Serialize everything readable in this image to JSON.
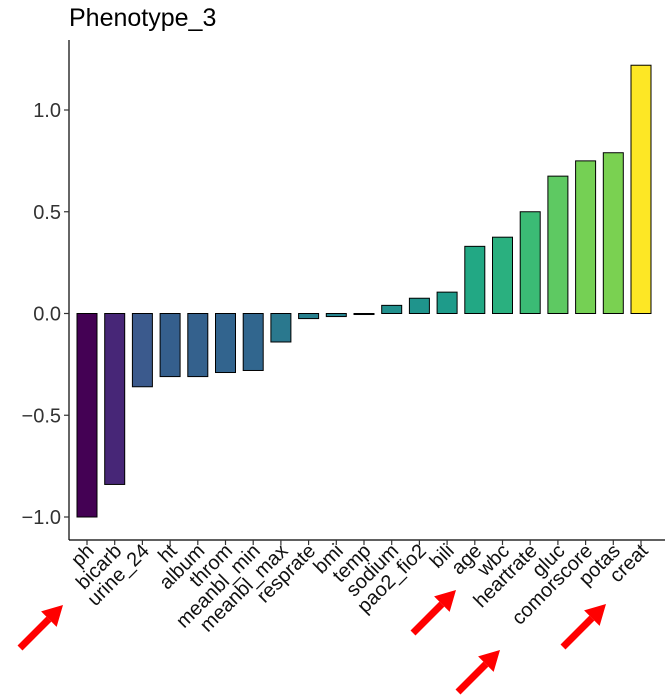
{
  "chart_data": {
    "type": "bar",
    "title": "Phenotype_3",
    "xlabel": "",
    "ylabel": "",
    "ylim": [
      -1.1,
      1.3
    ],
    "yticks": [
      -1.0,
      -0.5,
      0.0,
      0.5,
      1.0
    ],
    "ytick_labels": [
      "−1.0",
      "−0.5",
      "0.0",
      "0.5",
      "1.0"
    ],
    "grid": false,
    "legend": "none",
    "categories": [
      "ph",
      "bicarb",
      "urine_24",
      "ht",
      "album",
      "throm",
      "meanbl_min",
      "meanbl_max",
      "resprate",
      "bmi",
      "temp",
      "sodium",
      "pao2_fio2",
      "bili",
      "age",
      "wbc",
      "heartrate",
      "gluc",
      "comorscore",
      "potas",
      "creat"
    ],
    "values": [
      -1.0,
      -0.84,
      -0.36,
      -0.31,
      -0.31,
      -0.29,
      -0.28,
      -0.14,
      -0.025,
      -0.015,
      -0.005,
      0.04,
      0.075,
      0.105,
      0.33,
      0.375,
      0.5,
      0.675,
      0.75,
      0.79,
      1.22
    ],
    "colors": [
      "#440154",
      "#472677",
      "#3b5a8d",
      "#355f8d",
      "#34618d",
      "#32648e",
      "#31668e",
      "#2a788e",
      "#27808e",
      "#25838e",
      "#23878e",
      "#21908d",
      "#1f948c",
      "#1e9b8a",
      "#22a884",
      "#2ab07f",
      "#3bbb75",
      "#5ec962",
      "#75d054",
      "#7ad151",
      "#fde725"
    ],
    "highlighted": [
      "bicarb",
      "age",
      "comorscore",
      "potas"
    ]
  },
  "annotation": {
    "arrow_color": "#ff0000"
  }
}
